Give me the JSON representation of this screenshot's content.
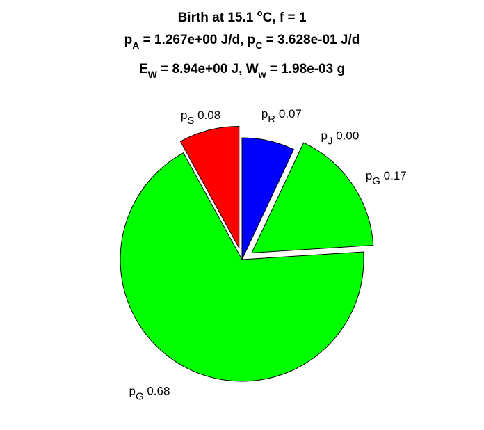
{
  "chart_data": {
    "type": "pie",
    "title": {
      "line1": {
        "pre": "Birth at 15.1 ",
        "sup": "o",
        "post": "C, f = 1"
      },
      "line2": {
        "s1": "p",
        "sub1": "A",
        "m1": " = 1.267e+00 J/d, ",
        "s2": "p",
        "sub2": "C",
        "m2": " = 3.628e-01 J/d"
      },
      "line3": {
        "s1": "E",
        "sub1": "W",
        "m1": " = 8.94e+00 J, ",
        "s2": "W",
        "sub2": "w",
        "m2": " = 1.98e-03 g"
      }
    },
    "slices": [
      {
        "name": "p",
        "sub": "R",
        "value": 0.07,
        "label": "0.07",
        "color": "#0000ff",
        "exploded": false
      },
      {
        "name": "p",
        "sub": "J",
        "value": 0.0,
        "label": "0.00",
        "color": "#ffff00",
        "exploded": true
      },
      {
        "name": "p",
        "sub": "G",
        "value": 0.17,
        "label": "0.17",
        "color": "#00ff00",
        "exploded": true
      },
      {
        "name": "p",
        "sub": "G",
        "value": 0.68,
        "label": "0.68",
        "color": "#00ff00",
        "exploded": false
      },
      {
        "name": "p",
        "sub": "S",
        "value": 0.08,
        "label": "0.08",
        "color": "#ff0000",
        "exploded": true
      }
    ],
    "start_angle": "12 o'clock",
    "direction": "clockwise",
    "edge_color": "#000000"
  }
}
